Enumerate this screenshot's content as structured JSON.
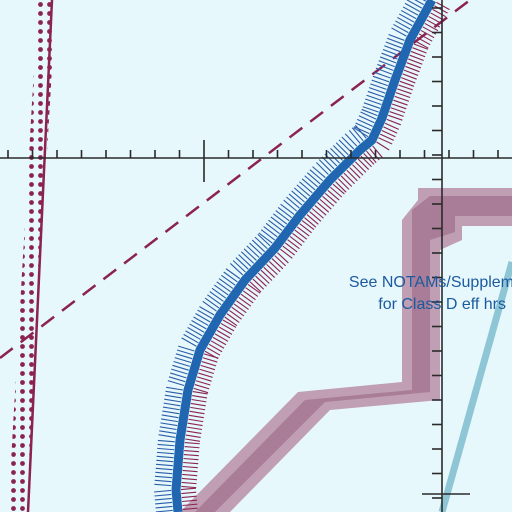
{
  "map": {
    "notice": {
      "line1": "See NOTAMs/Supplem",
      "line2": "for Class D eff hrs"
    },
    "features": [
      "class-d-airspace-boundary",
      "restricted-area-boundary-dotted",
      "victor-airway-dashed",
      "shoreline-with-hatching",
      "class-c-shaded-boundary",
      "lat-long-graticule"
    ]
  },
  "colors": {
    "background": "#e6f8fb",
    "magenta": "#8b2252",
    "blue": "#1c5aa0",
    "blue_hatch": "#2a5da8",
    "shore_blue": "#2166b0",
    "class_c_shade": "#b0869d",
    "light_blue_line": "#8ec6d6",
    "grid": "#2a2a2a"
  }
}
